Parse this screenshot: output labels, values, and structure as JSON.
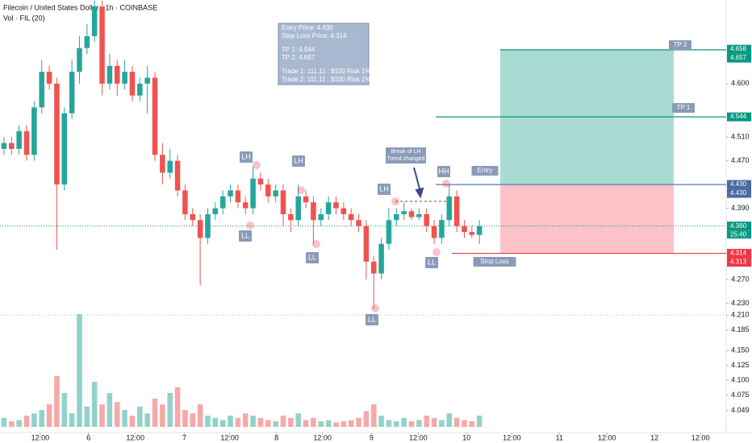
{
  "header": {
    "symbol": "Filecoin / United States Dollar · 1h · COINBASE",
    "volume": "Vol · FIL (20)"
  },
  "info_box": [
    "Entry Price: 4.430",
    "Stop Loss Price: 4.314",
    "TP 1: 4.544",
    "TP 2: 4.657",
    "Trade 1: 111.11 : $100 Risk 1%",
    "Trade 2: 111.11 : $100 Risk 1%"
  ],
  "chart_data": {
    "type": "candlestick",
    "open": [
      4.49,
      4.5,
      4.49,
      4.52,
      4.48,
      4.56,
      4.62,
      4.6,
      4.43,
      4.55,
      4.62,
      4.66,
      4.68,
      4.73,
      4.6,
      4.63,
      4.6,
      4.62,
      4.58,
      4.6,
      4.61,
      4.48,
      4.45,
      4.47,
      4.42,
      4.38,
      4.37,
      4.34,
      4.38,
      4.39,
      4.41,
      4.42,
      4.4,
      4.39,
      4.44,
      4.43,
      4.41,
      4.42,
      4.38,
      4.37,
      4.41,
      4.4,
      4.37,
      4.38,
      4.4,
      4.39,
      4.38,
      4.37,
      4.36,
      4.3,
      4.28,
      4.33,
      4.37,
      4.38,
      4.385,
      4.375,
      4.38,
      4.36,
      4.34,
      4.37,
      4.41,
      4.36,
      4.35,
      4.345
    ],
    "high": [
      4.51,
      4.51,
      4.53,
      4.53,
      4.57,
      4.64,
      4.63,
      4.61,
      4.56,
      4.64,
      4.68,
      4.7,
      4.74,
      4.74,
      4.65,
      4.64,
      4.64,
      4.63,
      4.61,
      4.63,
      4.62,
      4.5,
      4.49,
      4.48,
      4.43,
      4.39,
      4.38,
      4.39,
      4.4,
      4.42,
      4.43,
      4.43,
      4.41,
      4.46,
      4.45,
      4.44,
      4.43,
      4.43,
      4.39,
      4.43,
      4.42,
      4.41,
      4.39,
      4.41,
      4.41,
      4.4,
      4.39,
      4.38,
      4.37,
      4.31,
      4.34,
      4.39,
      4.39,
      4.4,
      4.39,
      4.39,
      4.39,
      4.37,
      4.38,
      4.43,
      4.42,
      4.37,
      4.36,
      4.37
    ],
    "low": [
      4.48,
      4.48,
      4.48,
      4.47,
      4.47,
      4.55,
      4.59,
      4.32,
      4.42,
      4.54,
      4.6,
      4.65,
      4.67,
      4.58,
      4.59,
      4.58,
      4.59,
      4.57,
      4.57,
      4.55,
      4.47,
      4.43,
      4.44,
      4.41,
      4.37,
      4.36,
      4.26,
      4.33,
      4.37,
      4.38,
      4.4,
      4.39,
      4.38,
      4.38,
      4.42,
      4.4,
      4.4,
      4.36,
      4.35,
      4.36,
      4.39,
      4.33,
      4.36,
      4.37,
      4.38,
      4.37,
      4.36,
      4.35,
      4.27,
      4.22,
      4.27,
      4.32,
      4.36,
      4.37,
      4.37,
      4.37,
      4.35,
      4.33,
      4.33,
      4.36,
      4.35,
      4.34,
      4.34,
      4.33
    ],
    "close": [
      4.5,
      4.49,
      4.52,
      4.48,
      4.56,
      4.62,
      4.6,
      4.43,
      4.55,
      4.62,
      4.66,
      4.68,
      4.73,
      4.6,
      4.63,
      4.6,
      4.62,
      4.58,
      4.6,
      4.61,
      4.48,
      4.45,
      4.47,
      4.42,
      4.38,
      4.37,
      4.34,
      4.38,
      4.39,
      4.41,
      4.42,
      4.4,
      4.39,
      4.44,
      4.43,
      4.41,
      4.42,
      4.38,
      4.37,
      4.41,
      4.4,
      4.37,
      4.38,
      4.4,
      4.39,
      4.38,
      4.37,
      4.36,
      4.3,
      4.28,
      4.33,
      4.37,
      4.38,
      4.385,
      4.375,
      4.38,
      4.36,
      4.34,
      4.37,
      4.41,
      4.36,
      4.35,
      4.345,
      4.36
    ],
    "volume": [
      8,
      5,
      6,
      10,
      12,
      15,
      20,
      45,
      30,
      12,
      100,
      18,
      40,
      20,
      30,
      22,
      15,
      10,
      18,
      12,
      25,
      20,
      30,
      35,
      15,
      12,
      20,
      10,
      8,
      6,
      10,
      8,
      12,
      10,
      8,
      6,
      5,
      10,
      8,
      12,
      6,
      8,
      5,
      6,
      4,
      5,
      6,
      8,
      14,
      20,
      10,
      6,
      5,
      8,
      5,
      6,
      10,
      8,
      6,
      12,
      8,
      6,
      5,
      10
    ],
    "volume_lim": [
      0,
      100
    ],
    "up_color": "#26a69a",
    "down_color": "#ef5350",
    "ylim": [
      4.012,
      4.741
    ],
    "yticks": [
      {
        "value": 4.049,
        "label": "4.049"
      },
      {
        "value": 4.075,
        "label": "4.075"
      },
      {
        "value": 4.1,
        "label": "4.100"
      },
      {
        "value": 4.125,
        "label": "4.125"
      },
      {
        "value": 4.15,
        "label": "4.150"
      },
      {
        "value": 4.185,
        "label": "4.185"
      },
      {
        "value": 4.21,
        "label": "4.210"
      },
      {
        "value": 4.23,
        "label": "4.230"
      },
      {
        "value": 4.27,
        "label": "4.270"
      },
      {
        "value": 4.39,
        "label": "4.390"
      },
      {
        "value": 4.47,
        "label": "4.470"
      },
      {
        "value": 4.51,
        "label": "4.510"
      },
      {
        "value": 4.6,
        "label": "4.600"
      }
    ],
    "xlim": [
      -0.53,
      95.7
    ],
    "xticks": [
      {
        "value": 4.8,
        "label": "12:00"
      },
      {
        "value": 11.2,
        "label": "6"
      },
      {
        "value": 17.4,
        "label": "12:00"
      },
      {
        "value": 23.9,
        "label": "7"
      },
      {
        "value": 29.9,
        "label": "12:00"
      },
      {
        "value": 36.1,
        "label": "8"
      },
      {
        "value": 42.2,
        "label": "12:00"
      },
      {
        "value": 48.7,
        "label": "9"
      },
      {
        "value": 54.9,
        "label": "12:00"
      },
      {
        "value": 61.3,
        "label": "10"
      },
      {
        "value": 67.3,
        "label": "12:00"
      },
      {
        "value": 73.6,
        "label": "11"
      },
      {
        "value": 79.9,
        "label": "12:00"
      },
      {
        "value": 86.2,
        "label": "12"
      },
      {
        "value": 92.3,
        "label": "12:00"
      }
    ],
    "levels": [
      {
        "name": "TP 2",
        "value": 4.657,
        "color": "#089981"
      },
      {
        "name": "TP 1",
        "value": 4.544,
        "color": "#089981"
      },
      {
        "name": "Entry",
        "value": 4.43,
        "color": "#5b7bb0"
      },
      {
        "name": "Stop Loss",
        "value": 4.314,
        "color": "#f23645"
      }
    ],
    "current_price": 4.36,
    "price_tags": [
      {
        "value": 4.658,
        "label": "4.658",
        "color": "#089981"
      },
      {
        "value": 4.657,
        "label": "4.657",
        "color": "#089981"
      },
      {
        "value": 4.544,
        "label": "4.544",
        "color": "#089981"
      },
      {
        "value": 4.43,
        "label": "4.430",
        "color": "#4a6aa0"
      },
      {
        "value": 4.43,
        "label": "4.430",
        "color": "#4a6aa0"
      },
      {
        "value": 4.36,
        "label": "4.360",
        "color": "#089981"
      },
      {
        "value": 4.314,
        "label": "4.314",
        "color": "#f23645"
      },
      {
        "value": 4.313,
        "label": "4.313",
        "color": "#f23645"
      }
    ],
    "countdown": "25:40",
    "annotations": [
      "LH",
      "LH",
      "LL",
      "LL",
      "LH",
      "LL",
      "HH",
      "LL",
      "Break of LH",
      "Trend changed"
    ]
  }
}
